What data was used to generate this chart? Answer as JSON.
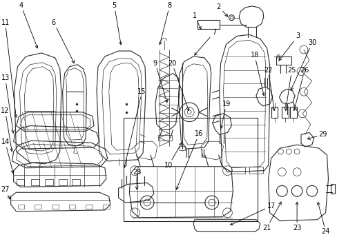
{
  "background_color": "#ffffff",
  "line_color": "#2a2a2a",
  "fig_width": 4.89,
  "fig_height": 3.6,
  "dpi": 100,
  "label_fontsize": 7.0
}
